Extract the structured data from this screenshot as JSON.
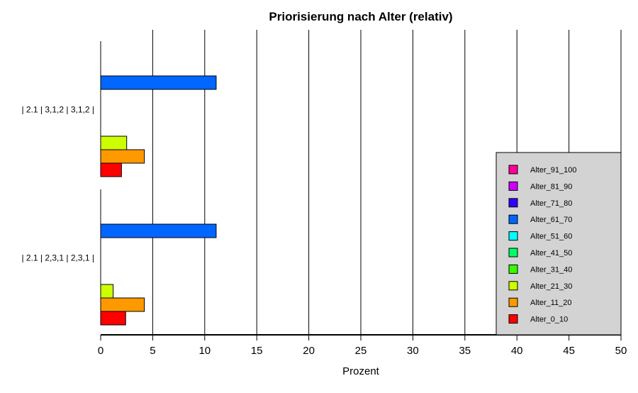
{
  "chart_data": {
    "type": "bar",
    "orientation": "horizontal",
    "title": "Priorisierung nach Alter (relativ)",
    "xlabel": "Prozent",
    "ylabel": "",
    "xlim": [
      0,
      50
    ],
    "xticks": [
      0,
      5,
      10,
      15,
      20,
      25,
      30,
      35,
      40,
      45,
      50
    ],
    "grid": "vertical",
    "legend_position": "right",
    "categories": [
      "| 2.1 | 3,1,2 | 3,1,2 |",
      "| 2.1 | 2,3,1 | 2,3,1 |"
    ],
    "series": [
      {
        "name": "Alter_0_10",
        "color": "#ff0000",
        "values": [
          2.0,
          2.4
        ]
      },
      {
        "name": "Alter_11_20",
        "color": "#ff9900",
        "values": [
          4.2,
          4.2
        ]
      },
      {
        "name": "Alter_21_30",
        "color": "#ccff00",
        "values": [
          2.5,
          1.2
        ]
      },
      {
        "name": "Alter_31_40",
        "color": "#33ff00",
        "values": [
          0,
          0
        ]
      },
      {
        "name": "Alter_41_50",
        "color": "#00ff66",
        "values": [
          0,
          0
        ]
      },
      {
        "name": "Alter_51_60",
        "color": "#00ffff",
        "values": [
          0,
          0
        ]
      },
      {
        "name": "Alter_61_70",
        "color": "#0066ff",
        "values": [
          11.1,
          11.1
        ]
      },
      {
        "name": "Alter_71_80",
        "color": "#3300ff",
        "values": [
          0,
          0
        ]
      },
      {
        "name": "Alter_81_90",
        "color": "#cc00ff",
        "values": [
          0,
          0
        ]
      },
      {
        "name": "Alter_91_100",
        "color": "#ff0099",
        "values": [
          0,
          0
        ]
      }
    ],
    "legend_background": "#d3d3d3"
  }
}
